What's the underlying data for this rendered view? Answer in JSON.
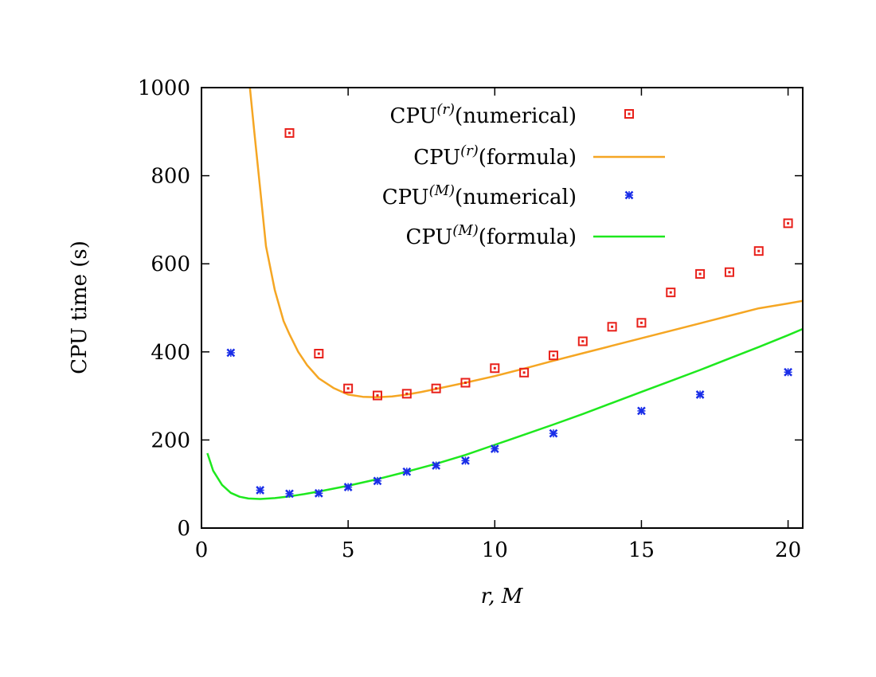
{
  "chart_data": {
    "type": "scatter",
    "xlabel": "r, M",
    "ylabel": "CPU time (s)",
    "xlim": [
      0,
      20.5
    ],
    "ylim": [
      0,
      1000
    ],
    "xticks": [
      0,
      5,
      10,
      15,
      20
    ],
    "yticks": [
      0,
      200,
      400,
      600,
      800,
      1000
    ],
    "grid": false,
    "legend_position": "top-right",
    "series": [
      {
        "name": "CPU(r)(numerical)",
        "legend_base": "CPU",
        "legend_sup": "(r)",
        "legend_suffix": "(numerical)",
        "kind": "points",
        "marker": "square",
        "color": "#e8201a",
        "x": [
          3,
          4,
          5,
          6,
          7,
          8,
          9,
          10,
          11,
          12,
          13,
          14,
          15,
          16,
          17,
          18,
          19,
          20
        ],
        "y": [
          897,
          396,
          317,
          301,
          305,
          317,
          330,
          363,
          353,
          392,
          424,
          457,
          466,
          535,
          577,
          581,
          629,
          692
        ]
      },
      {
        "name": "CPU(r)(formula)",
        "legend_base": "CPU",
        "legend_sup": "(r)",
        "legend_suffix": "(formula)",
        "kind": "line",
        "color": "#f5a623",
        "x": [
          1.65,
          1.8,
          2.0,
          2.2,
          2.5,
          2.8,
          3.0,
          3.3,
          3.6,
          4.0,
          4.5,
          5.0,
          5.5,
          6.0,
          6.5,
          7.0,
          7.5,
          8.0,
          9.0,
          10.0,
          11.0,
          12.0,
          13.0,
          14.0,
          15.0,
          16.0,
          17.0,
          18.0,
          19.0,
          20.0,
          20.5
        ],
        "y": [
          1000,
          900,
          770,
          640,
          540,
          470,
          440,
          400,
          370,
          340,
          318,
          303,
          298,
          297,
          299,
          303,
          309,
          316,
          330,
          345,
          362,
          380,
          397,
          414,
          431,
          448,
          465,
          482,
          499,
          510,
          516
        ]
      },
      {
        "name": "CPU(M)(numerical)",
        "legend_base": "CPU",
        "legend_sup": "(M)",
        "legend_suffix": "(numerical)",
        "kind": "points",
        "marker": "cross",
        "color": "#1a2ee8",
        "x": [
          1,
          2,
          3,
          4,
          5,
          6,
          7,
          8,
          9,
          10,
          12,
          15,
          17,
          20
        ],
        "y": [
          398,
          86,
          78,
          79,
          93,
          107,
          128,
          142,
          153,
          180,
          215,
          266,
          303,
          354
        ]
      },
      {
        "name": "CPU(M)(formula)",
        "legend_base": "CPU",
        "legend_sup": "(M)",
        "legend_suffix": "(formula)",
        "kind": "line",
        "color": "#1ee81e",
        "x": [
          0.2,
          0.4,
          0.7,
          1.0,
          1.3,
          1.6,
          2.0,
          2.5,
          3.0,
          3.5,
          4.0,
          5.0,
          6.0,
          7.0,
          8.0,
          9.0,
          10.0,
          11.0,
          12.0,
          13.0,
          14.0,
          15.0,
          16.0,
          17.0,
          18.0,
          19.0,
          20.0,
          20.5
        ],
        "y": [
          170,
          130,
          98,
          80,
          71,
          67,
          66,
          68,
          72,
          77,
          83,
          96,
          111,
          128,
          146,
          166,
          189,
          212,
          235,
          259,
          284,
          309,
          334,
          359,
          385,
          411,
          438,
          452
        ]
      }
    ]
  }
}
